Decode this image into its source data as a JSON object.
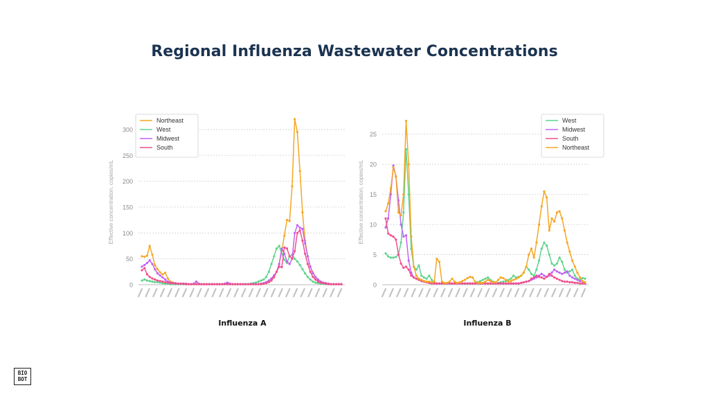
{
  "page": {
    "title": "Regional Influenza Wastewater Concentrations",
    "logo_lines": [
      "BIO",
      "BOT"
    ]
  },
  "chart_data": [
    {
      "type": "line",
      "caption": "Influenza A",
      "ylabel": "Effective concentration, copies/mL",
      "ylim": [
        0,
        320
      ],
      "yticks": [
        0,
        50,
        100,
        150,
        200,
        250,
        300
      ],
      "grid": true,
      "legend_position": "top-left",
      "x_tick_count": 28,
      "series": [
        {
          "name": "Northeast",
          "color": "#f5a623",
          "values": [
            55,
            54,
            56,
            75,
            58,
            38,
            30,
            24,
            20,
            23,
            12,
            6,
            4,
            3,
            2,
            2,
            1,
            1,
            1,
            1,
            1,
            1,
            1,
            1,
            1,
            1,
            1,
            1,
            1,
            1,
            1,
            1,
            2,
            2,
            1,
            1,
            1,
            1,
            1,
            1,
            1,
            1,
            1,
            1,
            1,
            1,
            1,
            2,
            4,
            5,
            8,
            14,
            25,
            40,
            65,
            95,
            125,
            123,
            190,
            320,
            295,
            220,
            140,
            85,
            55,
            35,
            24,
            15,
            10,
            6,
            4,
            3,
            2,
            1,
            1,
            1,
            1,
            1
          ]
        },
        {
          "name": "West",
          "color": "#5fd38d",
          "values": [
            8,
            10,
            8,
            7,
            6,
            5,
            5,
            4,
            3,
            2,
            2,
            1,
            1,
            1,
            1,
            1,
            1,
            1,
            1,
            1,
            1,
            1,
            1,
            1,
            1,
            1,
            1,
            1,
            1,
            1,
            1,
            1,
            1,
            1,
            1,
            1,
            1,
            1,
            1,
            1,
            1,
            1,
            2,
            3,
            4,
            6,
            8,
            10,
            15,
            25,
            40,
            55,
            70,
            75,
            60,
            48,
            42,
            55,
            58,
            50,
            45,
            38,
            30,
            22,
            15,
            10,
            6,
            4,
            3,
            2,
            2,
            1,
            1,
            1,
            1,
            1,
            1,
            1
          ]
        },
        {
          "name": "Midwest",
          "color": "#c061f5",
          "values": [
            35,
            38,
            42,
            47,
            40,
            30,
            22,
            18,
            14,
            10,
            6,
            4,
            3,
            3,
            2,
            2,
            2,
            2,
            1,
            1,
            2,
            6,
            2,
            1,
            1,
            1,
            1,
            1,
            1,
            1,
            1,
            1,
            2,
            4,
            2,
            1,
            1,
            1,
            1,
            1,
            1,
            1,
            1,
            1,
            1,
            1,
            2,
            3,
            5,
            8,
            12,
            18,
            25,
            40,
            70,
            60,
            45,
            40,
            50,
            100,
            115,
            110,
            108,
            80,
            55,
            35,
            22,
            15,
            10,
            6,
            4,
            3,
            2,
            1,
            1,
            1,
            1,
            1
          ]
        },
        {
          "name": "South",
          "color": "#f0508c",
          "values": [
            28,
            32,
            20,
            15,
            12,
            10,
            8,
            7,
            6,
            5,
            4,
            3,
            3,
            2,
            2,
            2,
            2,
            1,
            1,
            1,
            1,
            1,
            1,
            1,
            1,
            1,
            1,
            1,
            1,
            1,
            1,
            1,
            1,
            1,
            1,
            1,
            1,
            1,
            1,
            1,
            1,
            1,
            1,
            1,
            1,
            1,
            1,
            2,
            3,
            5,
            8,
            15,
            25,
            35,
            34,
            72,
            70,
            55,
            50,
            65,
            100,
            105,
            85,
            60,
            40,
            25,
            15,
            10,
            6,
            4,
            3,
            2,
            1,
            1,
            1,
            1,
            1,
            1
          ]
        }
      ]
    },
    {
      "type": "line",
      "caption": "Influenza B",
      "ylabel": "Effective concentration, copies/mL",
      "ylim": [
        0,
        27.5
      ],
      "yticks": [
        0,
        5,
        10,
        15,
        20,
        25
      ],
      "grid": true,
      "legend_position": "top-right",
      "x_tick_count": 28,
      "series": [
        {
          "name": "West",
          "color": "#5fd38d",
          "values": [
            5.2,
            4.7,
            4.5,
            4.5,
            4.6,
            5,
            7,
            12,
            22.5,
            15,
            6,
            3,
            2.5,
            3.2,
            1.5,
            1.2,
            1,
            1.5,
            0.8,
            0.4,
            0.2,
            0.2,
            0.2,
            0.2,
            0.2,
            0.2,
            0.2,
            0.2,
            0.2,
            0.2,
            0.2,
            0.2,
            0.2,
            0.2,
            0.2,
            0.2,
            0.4,
            0.6,
            0.8,
            1,
            1.2,
            0.8,
            0.5,
            0.3,
            0.3,
            0.4,
            0.5,
            0.6,
            0.8,
            1,
            1.5,
            1.2,
            1.3,
            1.5,
            2,
            3,
            2.5,
            1.8,
            1.5,
            2.5,
            4,
            6,
            7,
            6.5,
            5,
            3.5,
            3.2,
            3.5,
            4.5,
            3.8,
            2.5,
            2,
            2.2,
            2.5,
            1.5,
            1,
            0.8,
            1.1,
            1
          ]
        },
        {
          "name": "Midwest",
          "color": "#c061f5",
          "values": [
            9.5,
            11,
            15,
            19.8,
            18,
            14,
            10,
            8,
            8.2,
            4,
            2,
            1.2,
            1,
            0.8,
            0.6,
            0.5,
            0.4,
            0.3,
            0.2,
            0.2,
            0.2,
            0.2,
            0.2,
            0.2,
            0.2,
            0.2,
            0.2,
            0.2,
            0.2,
            0.2,
            0.2,
            0.2,
            0.2,
            0.2,
            0.2,
            0.2,
            0.2,
            0.2,
            0.2,
            0.2,
            0.2,
            0.2,
            0.2,
            0.2,
            0.2,
            0.2,
            0.2,
            0.2,
            0.2,
            0.2,
            0.2,
            0.2,
            0.2,
            0.3,
            0.4,
            0.5,
            0.6,
            0.8,
            1,
            1.2,
            1.5,
            1.8,
            1.5,
            1.3,
            1.5,
            2,
            2.5,
            2.2,
            2,
            1.8,
            2,
            2.2,
            1.5,
            1.2,
            1,
            0.8,
            0.6,
            0.5,
            0.4
          ]
        },
        {
          "name": "South",
          "color": "#f0508c",
          "values": [
            11,
            8.5,
            8.2,
            8,
            7.5,
            5,
            3.5,
            2.8,
            3,
            2.5,
            1.5,
            1.2,
            1,
            0.8,
            0.6,
            0.5,
            0.4,
            0.3,
            0.2,
            0.2,
            0.2,
            0.2,
            0.2,
            0.2,
            0.2,
            0.2,
            0.2,
            0.2,
            0.2,
            0.2,
            0.2,
            0.2,
            0.2,
            0.2,
            0.2,
            0.2,
            0.2,
            0.2,
            0.2,
            0.2,
            0.2,
            0.2,
            0.2,
            0.2,
            0.2,
            0.2,
            0.2,
            0.2,
            0.2,
            0.2,
            0.2,
            0.2,
            0.2,
            0.3,
            0.4,
            0.5,
            0.6,
            1,
            1.2,
            1.5,
            1.3,
            1.2,
            1,
            1.3,
            1.8,
            1.5,
            1.2,
            1,
            0.8,
            0.6,
            0.5,
            0.5,
            0.4,
            0.4,
            0.3,
            0.3,
            0.2,
            0.2,
            0.2
          ]
        },
        {
          "name": "Northeast",
          "color": "#f5a623",
          "values": [
            12.2,
            13.5,
            16,
            19.5,
            18,
            12,
            11.5,
            15,
            27.2,
            20,
            8,
            3,
            1.5,
            1,
            0.8,
            0.6,
            0.5,
            0.5,
            0.4,
            0.5,
            4.3,
            3.8,
            0.5,
            0.3,
            0.3,
            0.5,
            1,
            0.5,
            0.3,
            0.4,
            0.6,
            0.8,
            1.1,
            1.3,
            1.2,
            0.5,
            0.3,
            0.3,
            0.3,
            0.5,
            0.8,
            0.6,
            0.4,
            0.4,
            0.8,
            1.2,
            1.1,
            0.8,
            0.5,
            0.6,
            0.8,
            1,
            1.2,
            1.5,
            2,
            3,
            5,
            6,
            4.5,
            7,
            10,
            13,
            15.5,
            14.5,
            9,
            11,
            10.5,
            12,
            12.2,
            11,
            9,
            7,
            5.5,
            4,
            3,
            2,
            1.2,
            0.6,
            0.4
          ]
        }
      ]
    }
  ]
}
